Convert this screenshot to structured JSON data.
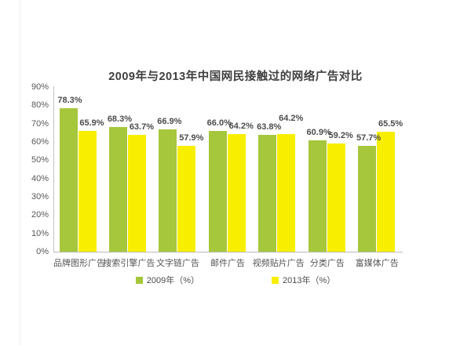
{
  "page": {
    "background": "#ffffff",
    "edge_line_color": "#f0efee"
  },
  "chart_data": {
    "type": "bar",
    "title": "2009年与2013年中国网民接触过的网络广告对比",
    "categories": [
      "品牌图形广告",
      "搜索引擎广告",
      "文字链广告",
      "邮件广告",
      "视频贴片广告",
      "分类广告",
      "富媒体广告"
    ],
    "series": [
      {
        "name": "2009年（%）",
        "color": "#a6c73c",
        "values": [
          78.3,
          68.3,
          66.9,
          66.0,
          63.8,
          60.9,
          57.7
        ]
      },
      {
        "name": "2013年（%）",
        "color": "#f8ef00",
        "values": [
          65.9,
          63.7,
          57.9,
          64.2,
          64.2,
          59.2,
          65.5
        ]
      }
    ],
    "value_label_suffix": "%",
    "ylim": [
      0,
      90
    ],
    "yticks": [
      {
        "value": 0,
        "label": "0%"
      },
      {
        "value": 10,
        "label": "10%"
      },
      {
        "value": 20,
        "label": "20%"
      },
      {
        "value": 30,
        "label": "30%"
      },
      {
        "value": 40,
        "label": "40%"
      },
      {
        "value": 50,
        "label": "50%"
      },
      {
        "value": 60,
        "label": "60%"
      },
      {
        "value": 70,
        "label": "70%"
      },
      {
        "value": 80,
        "label": "80%"
      },
      {
        "value": 90,
        "label": "90%"
      }
    ],
    "grid": false,
    "legend_position": "bottom",
    "axis_color": "#bdbdbd",
    "text_color": "#555555"
  }
}
